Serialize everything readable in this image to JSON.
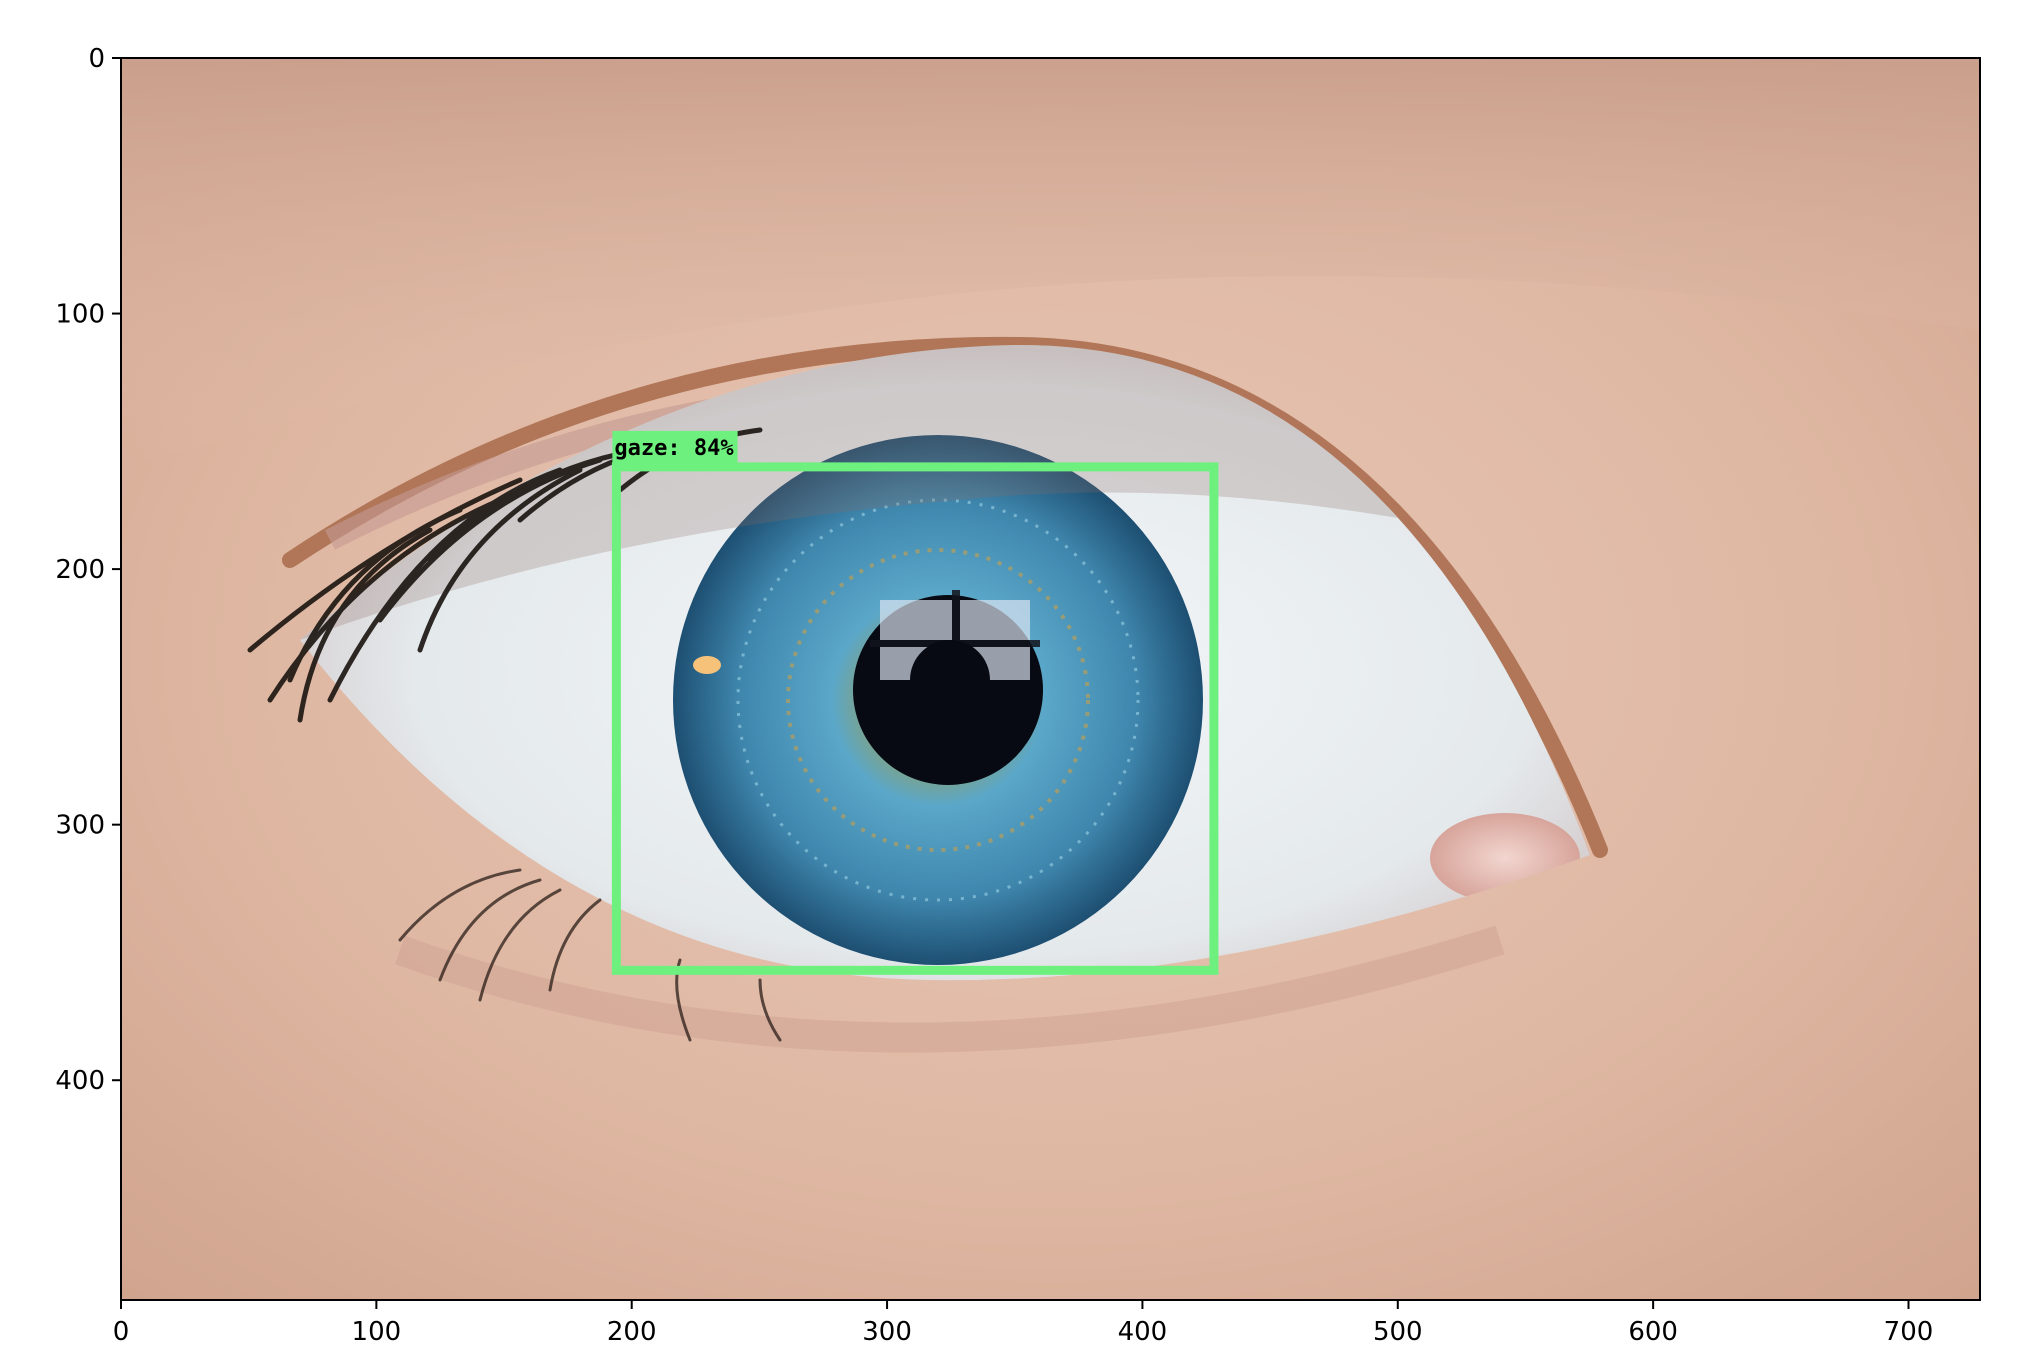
{
  "axes": {
    "x_ticks": [
      0,
      100,
      200,
      300,
      400,
      500,
      600,
      700
    ],
    "y_ticks": [
      0,
      100,
      200,
      300,
      400
    ],
    "xlim": [
      0,
      728
    ],
    "ylim": [
      0,
      486
    ]
  },
  "detection": {
    "label": "gaze: 84%",
    "box": {
      "x_min": 194,
      "y_min": 160,
      "x_max": 428,
      "y_max": 357
    },
    "box_color": "#6ef07e",
    "label_bg_color": "#6ef07e"
  },
  "image": {
    "subject": "close-up of a blue human eye",
    "skin_color": "#e2bba8",
    "iris_color": "#3f86ad",
    "pupil_color": "#070a12",
    "sclera_color": "#e9eef1"
  }
}
